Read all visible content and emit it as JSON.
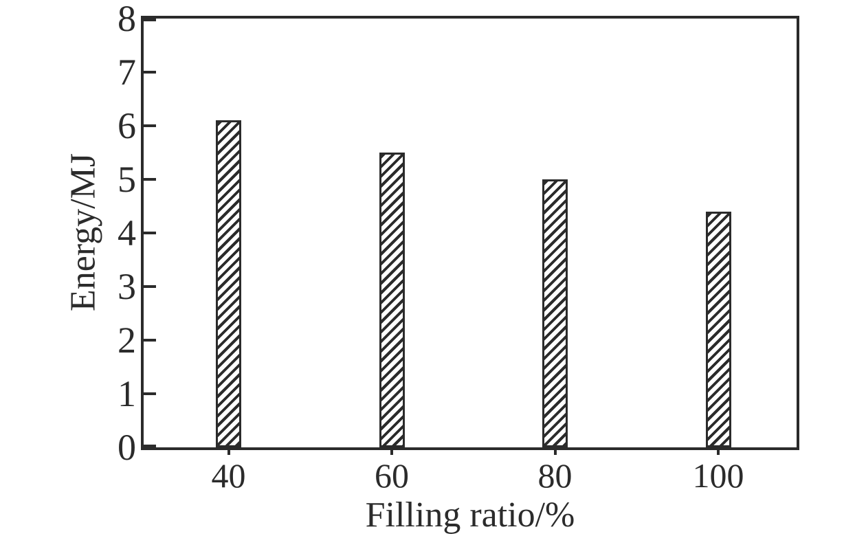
{
  "figure": {
    "background_color": "#ffffff",
    "ink_color": "#2b2b2b"
  },
  "chart_data": {
    "type": "bar",
    "title": "",
    "xlabel": "Filling ratio/%",
    "ylabel": "Energy/MJ",
    "categories": [
      "40",
      "60",
      "80",
      "100"
    ],
    "values": [
      6.1,
      5.5,
      5.0,
      4.4
    ],
    "ylim": [
      0,
      8
    ],
    "yticks": [
      0,
      1,
      2,
      3,
      4,
      5,
      6,
      7,
      8
    ],
    "grid": false,
    "legend": false,
    "frame": "full-box",
    "tick_direction": "in",
    "bar_style": {
      "fill": "diagonal-hatch",
      "hatch_direction": "forward-slash",
      "hatch_color": "#2b2b2b",
      "bar_background": "#ffffff"
    }
  }
}
